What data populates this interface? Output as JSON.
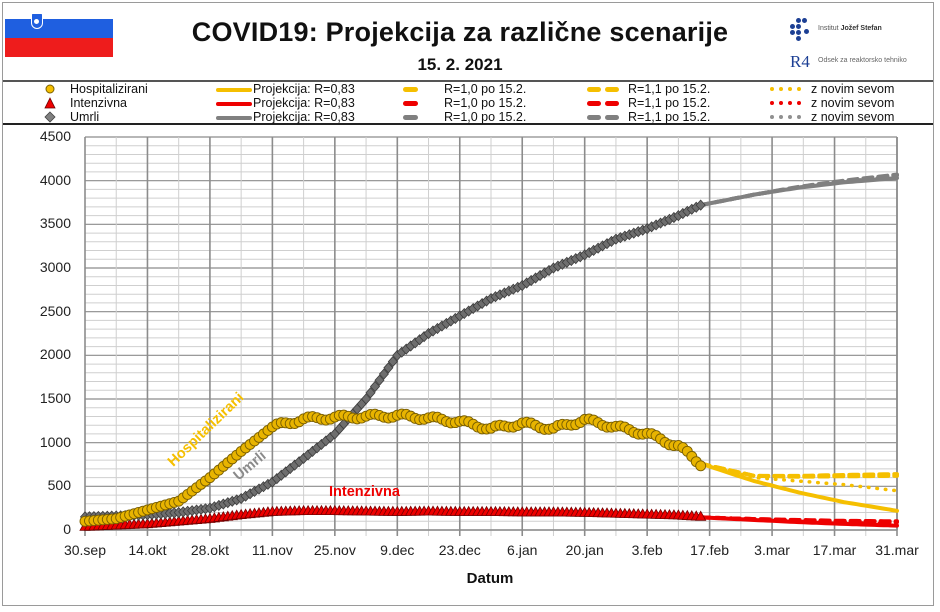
{
  "header": {
    "title": "COVID19: Projekcija za različne scenarije",
    "date": "15. 2. 2021",
    "logo_ijs_prefix": "Institut",
    "logo_ijs_name": "Jožef Stefan",
    "logo_r4": "R4",
    "logo_r4_text": "Odsek za reaktorsko tehniko"
  },
  "colors": {
    "hospitalizirani": "#f5bf00",
    "hospitalizirani_marker": "#e8b400",
    "intenzivna": "#ee0000",
    "umrli": "#808080",
    "umrli_marker": "#6e6e6e",
    "grid_major": "#8c8c8c",
    "grid_minor": "#cfcfcf",
    "flag_blue": "#1f5fe0",
    "flag_red": "#ee1c1c",
    "ijs_blue": "#1c3f94"
  },
  "legend": {
    "rows": [
      {
        "series": "Hospitalizirani",
        "marker": "circle",
        "proj": "Projekcija: R=0,83",
        "r10": "R=1,0 po 15.2.",
        "r11": "R=1,1 po 15.2.",
        "sev": "z novim sevom"
      },
      {
        "series": "Intenzivna",
        "marker": "triangle",
        "proj": "Projekcija: R=0,83",
        "r10": "R=1,0 po 15.2.",
        "r11": "R=1,1 po 15.2.",
        "sev": "z novim sevom"
      },
      {
        "series": "Umrli",
        "marker": "diamond",
        "proj": "Projekcija: R=0,83",
        "r10": "R=1,0 po 15.2.",
        "r11": "R=1,1 po 15.2.",
        "sev": "z novim sevom"
      }
    ]
  },
  "annotations": {
    "hospitalizirani": "Hospitalizirani",
    "umrli": "Umrli",
    "intenzivna": "Intenzivna"
  },
  "chart_data": {
    "type": "line",
    "title": "COVID19: Projekcija za različne scenarije",
    "subtitle": "15. 2. 2021",
    "xlabel": "Datum",
    "ylabel": "",
    "ylim": [
      0,
      4500
    ],
    "yticks": [
      0,
      500,
      1000,
      1500,
      2000,
      2500,
      3000,
      3500,
      4000,
      4500
    ],
    "x_tick_labels": [
      "30.sep",
      "14.okt",
      "28.okt",
      "11.nov",
      "25.nov",
      "9.dec",
      "23.dec",
      "6.jan",
      "20.jan",
      "3.feb",
      "17.feb",
      "3.mar",
      "17.mar",
      "31.mar"
    ],
    "x_unit": "days since 30.sep (tick every 14 days, minor grid every 7 days)",
    "x_range_days": [
      0,
      182
    ],
    "grid": {
      "horizontal_minor": 100,
      "horizontal_major": 500,
      "vertical_minor_days": 7,
      "vertical_major_days": 14
    },
    "legend_position": "top",
    "observed_until_day": 138,
    "series": [
      {
        "name": "Hospitalizirani",
        "kind": "observed",
        "marker": "circle",
        "x": [
          0,
          7,
          14,
          21,
          28,
          35,
          42,
          49,
          56,
          63,
          70,
          77,
          84,
          91,
          98,
          105,
          112,
          119,
          126,
          133,
          138
        ],
        "values": [
          100,
          130,
          230,
          330,
          600,
          900,
          1180,
          1270,
          1290,
          1300,
          1310,
          1280,
          1240,
          1160,
          1220,
          1160,
          1260,
          1180,
          1100,
          960,
          760
        ]
      },
      {
        "name": "Intenzivna",
        "kind": "observed",
        "marker": "triangle",
        "x": [
          0,
          7,
          14,
          21,
          28,
          35,
          42,
          49,
          56,
          63,
          70,
          77,
          84,
          91,
          98,
          105,
          112,
          119,
          126,
          133,
          138
        ],
        "values": [
          30,
          45,
          60,
          90,
          120,
          165,
          200,
          210,
          210,
          205,
          200,
          205,
          200,
          200,
          195,
          195,
          190,
          180,
          170,
          160,
          145
        ]
      },
      {
        "name": "Umrli",
        "kind": "observed",
        "marker": "diamond",
        "x": [
          0,
          7,
          14,
          21,
          28,
          35,
          42,
          49,
          56,
          63,
          70,
          77,
          84,
          91,
          98,
          105,
          112,
          119,
          126,
          133,
          138
        ],
        "values": [
          150,
          160,
          175,
          200,
          250,
          360,
          550,
          820,
          1100,
          1500,
          2000,
          2250,
          2450,
          2650,
          2800,
          3000,
          3150,
          3330,
          3450,
          3600,
          3720
        ]
      },
      {
        "name": "Hospitalizirani – Projekcija: R=0,83",
        "kind": "projection",
        "style": "solid",
        "x": [
          138,
          150,
          160,
          170,
          182
        ],
        "values": [
          760,
          560,
          430,
          320,
          220
        ]
      },
      {
        "name": "Hospitalizirani – R=1,0 po 15.2.",
        "kind": "projection",
        "style": "dash",
        "x": [
          138,
          150,
          160,
          170,
          182
        ],
        "values": [
          760,
          620,
          610,
          615,
          620
        ]
      },
      {
        "name": "Hospitalizirani – R=1,1 po 15.2.",
        "kind": "projection",
        "style": "dash",
        "x": [
          138,
          150,
          160,
          170,
          182
        ],
        "values": [
          760,
          620,
          620,
          630,
          640
        ]
      },
      {
        "name": "Hospitalizirani – z novim sevom",
        "kind": "projection",
        "style": "dot",
        "x": [
          138,
          150,
          160,
          170,
          182
        ],
        "values": [
          760,
          600,
          560,
          520,
          450
        ]
      },
      {
        "name": "Intenzivna – Projekcija: R=0,83",
        "kind": "projection",
        "style": "solid",
        "x": [
          138,
          150,
          160,
          170,
          182
        ],
        "values": [
          145,
          115,
          90,
          70,
          50
        ]
      },
      {
        "name": "Intenzivna – R=1,0 po 15.2.",
        "kind": "projection",
        "style": "dash",
        "x": [
          138,
          150,
          160,
          170,
          182
        ],
        "values": [
          145,
          125,
          110,
          100,
          90
        ]
      },
      {
        "name": "Intenzivna – R=1,1 po 15.2.",
        "kind": "projection",
        "style": "dash",
        "x": [
          138,
          150,
          160,
          170,
          182
        ],
        "values": [
          145,
          125,
          115,
          105,
          100
        ]
      },
      {
        "name": "Intenzivna – z novim sevom",
        "kind": "projection",
        "style": "dot",
        "x": [
          138,
          150,
          160,
          170,
          182
        ],
        "values": [
          145,
          120,
          100,
          85,
          70
        ]
      },
      {
        "name": "Umrli – Projekcija: R=0,83",
        "kind": "projection",
        "style": "solid",
        "x": [
          138,
          150,
          160,
          170,
          182
        ],
        "values": [
          3720,
          3840,
          3920,
          3980,
          4030
        ]
      },
      {
        "name": "Umrli – R=1,0 po 15.2.",
        "kind": "projection",
        "style": "dash",
        "x": [
          138,
          150,
          160,
          170,
          182
        ],
        "values": [
          3720,
          3840,
          3925,
          3995,
          4060
        ]
      },
      {
        "name": "Umrli – R=1,1 po 15.2.",
        "kind": "projection",
        "style": "dash",
        "x": [
          138,
          150,
          160,
          170,
          182
        ],
        "values": [
          3720,
          3840,
          3930,
          4000,
          4070
        ]
      },
      {
        "name": "Umrli – z novim sevom",
        "kind": "projection",
        "style": "dot",
        "x": [
          138,
          150,
          160,
          170,
          182
        ],
        "values": [
          3720,
          3840,
          3925,
          3990,
          4050
        ]
      }
    ]
  }
}
